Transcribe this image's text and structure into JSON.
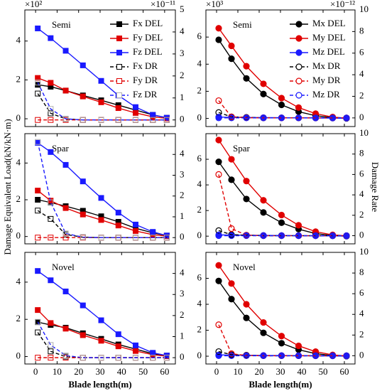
{
  "ylabel": "Damage Equivalent Load(kN/kN·m)",
  "y2label": "Damage Rate",
  "chart_data": [
    {
      "type": "line",
      "title": "Semi",
      "marker": "square",
      "legend": "upper right",
      "y_multiplier": "×10²",
      "y2_multiplier": "×10⁻¹¹",
      "x": [
        1,
        7,
        14,
        22,
        30.5,
        38.5,
        46.5,
        54.5,
        61
      ],
      "xlim": [
        -5,
        65
      ],
      "xticks": [
        0,
        10,
        20,
        30,
        40,
        50,
        60
      ],
      "ylim": [
        -0.4,
        5.6
      ],
      "yticks": [
        0,
        2,
        4
      ],
      "y2lim": [
        -0.3,
        5
      ],
      "y2ticks": [
        0,
        1,
        2,
        3,
        4,
        5
      ],
      "series": [
        {
          "name": "Fx DEL",
          "color": "#000000",
          "values": [
            1.75,
            1.65,
            1.45,
            1.2,
            0.95,
            0.7,
            0.45,
            0.2,
            0.05
          ]
        },
        {
          "name": "Fy DEL",
          "color": "#e00000",
          "values": [
            2.1,
            1.85,
            1.45,
            1.15,
            0.85,
            0.55,
            0.3,
            0.1,
            0.02
          ]
        },
        {
          "name": "Fz DEL",
          "color": "#1a1aff",
          "values": [
            4.65,
            4.15,
            3.5,
            2.75,
            1.95,
            1.2,
            0.6,
            0.2,
            0.05
          ]
        },
        {
          "name": "Fx DR",
          "color": "#000000",
          "axis": "y2",
          "dashed": true,
          "values": [
            1.2,
            0.3,
            0.05,
            0,
            0,
            0,
            0,
            0,
            0
          ]
        },
        {
          "name": "Fy DR",
          "color": "#e00000",
          "axis": "y2",
          "dashed": true,
          "values": [
            0,
            0,
            0,
            0,
            0,
            0,
            0,
            0,
            0
          ]
        },
        {
          "name": "Fz DR",
          "color": "#1a1aff",
          "marker_color": "#b0b0b0",
          "axis": "y2",
          "dashed": true,
          "values": [
            1.7,
            0.5,
            0.05,
            0,
            0,
            0,
            0,
            0,
            0
          ]
        }
      ]
    },
    {
      "type": "line",
      "title": "Semi",
      "marker": "circle",
      "legend": "upper right",
      "y_multiplier": "×10³",
      "y2_multiplier": "×10⁻¹²",
      "x": [
        1,
        7,
        14,
        22,
        30.5,
        38.5,
        46.5,
        54.5,
        61
      ],
      "xlim": [
        -5,
        65
      ],
      "xticks": [
        0,
        10,
        20,
        30,
        40,
        50,
        60
      ],
      "ylim": [
        -0.6,
        8
      ],
      "yticks": [
        0,
        2,
        4,
        6
      ],
      "y2lim": [
        -0.8,
        10
      ],
      "y2ticks": [
        0,
        2,
        4,
        6,
        8,
        10
      ],
      "series": [
        {
          "name": "Mx DEL",
          "color": "#000000",
          "values": [
            5.8,
            4.4,
            2.95,
            1.8,
            1.0,
            0.5,
            0.2,
            0.05,
            0
          ]
        },
        {
          "name": "My DEL",
          "color": "#e00000",
          "values": [
            6.65,
            5.35,
            3.85,
            2.55,
            1.5,
            0.8,
            0.35,
            0.1,
            0.02
          ]
        },
        {
          "name": "Mz DEL",
          "color": "#1a1aff",
          "values": [
            0.1,
            0.08,
            0.07,
            0.06,
            0.05,
            0.04,
            0.03,
            0.02,
            0.01
          ]
        },
        {
          "name": "Mx DR",
          "color": "#000000",
          "axis": "y2",
          "dashed": true,
          "values": [
            0.5,
            0.1,
            0.05,
            0,
            0,
            0,
            0,
            0,
            0
          ]
        },
        {
          "name": "My DR",
          "color": "#e00000",
          "axis": "y2",
          "dashed": true,
          "values": [
            1.6,
            0.1,
            0.02,
            0,
            0,
            0,
            0,
            0,
            0
          ]
        },
        {
          "name": "Mz DR",
          "color": "#1a1aff",
          "axis": "y2",
          "dashed": true,
          "values": [
            0,
            0,
            0,
            0,
            0,
            0,
            0,
            0,
            0
          ]
        }
      ]
    },
    {
      "type": "line",
      "title": "Spar",
      "marker": "square",
      "x": [
        1,
        7,
        14,
        22,
        30.5,
        38.5,
        46.5,
        54.5,
        61
      ],
      "xlim": [
        -5,
        65
      ],
      "xticks": [
        0,
        10,
        20,
        30,
        40,
        50,
        60
      ],
      "ylim": [
        -0.4,
        5.6
      ],
      "yticks": [
        0,
        2,
        4
      ],
      "y2lim": [
        -0.3,
        5
      ],
      "y2ticks": [
        0,
        1,
        2,
        3,
        4
      ],
      "series": [
        {
          "color": "#000000",
          "values": [
            2.0,
            1.85,
            1.65,
            1.4,
            1.1,
            0.8,
            0.45,
            0.2,
            0.05
          ]
        },
        {
          "color": "#e00000",
          "values": [
            2.5,
            1.95,
            1.55,
            1.2,
            0.9,
            0.6,
            0.3,
            0.1,
            0.02
          ]
        },
        {
          "color": "#1a1aff",
          "values": [
            5.1,
            4.6,
            3.9,
            3.0,
            2.1,
            1.3,
            0.65,
            0.25,
            0.05
          ]
        },
        {
          "color": "#000000",
          "axis": "y2",
          "dashed": true,
          "values": [
            1.3,
            0.9,
            0.15,
            0.02,
            0,
            0,
            0,
            0,
            0
          ]
        },
        {
          "color": "#e00000",
          "axis": "y2",
          "dashed": true,
          "values": [
            0,
            0,
            0,
            0,
            0,
            0,
            0,
            0,
            0
          ]
        },
        {
          "color": "#1a1aff",
          "marker_color": "#b0b0b0",
          "axis": "y2",
          "dashed": true,
          "values": [
            4.6,
            1.7,
            0.2,
            0.02,
            0,
            0,
            0,
            0,
            0
          ]
        }
      ]
    },
    {
      "type": "line",
      "title": "Spar",
      "marker": "circle",
      "x": [
        1,
        7,
        14,
        22,
        30.5,
        38.5,
        46.5,
        54.5,
        61
      ],
      "xlim": [
        -5,
        65
      ],
      "xticks": [
        0,
        10,
        20,
        30,
        40,
        50,
        60
      ],
      "ylim": [
        -0.6,
        8
      ],
      "yticks": [
        0,
        2,
        4,
        6
      ],
      "y2lim": [
        -0.8,
        10
      ],
      "y2ticks": [
        0,
        2,
        4,
        6,
        8,
        10
      ],
      "series": [
        {
          "color": "#000000",
          "values": [
            5.8,
            4.4,
            2.9,
            1.85,
            1.05,
            0.55,
            0.2,
            0.05,
            0
          ]
        },
        {
          "color": "#e00000",
          "values": [
            7.5,
            6.0,
            4.3,
            2.8,
            1.65,
            0.85,
            0.35,
            0.1,
            0.02
          ]
        },
        {
          "color": "#1a1aff",
          "values": [
            0.1,
            0.08,
            0.07,
            0.06,
            0.05,
            0.04,
            0.03,
            0.02,
            0.01
          ]
        },
        {
          "color": "#000000",
          "axis": "y2",
          "dashed": true,
          "values": [
            0.5,
            0.1,
            0.05,
            0,
            0,
            0,
            0,
            0,
            0
          ]
        },
        {
          "color": "#e00000",
          "axis": "y2",
          "dashed": true,
          "values": [
            6.0,
            0.7,
            0.05,
            0,
            0,
            0,
            0,
            0,
            0
          ]
        },
        {
          "color": "#1a1aff",
          "axis": "y2",
          "dashed": true,
          "values": [
            0,
            0,
            0,
            0,
            0,
            0,
            0,
            0,
            0
          ]
        }
      ]
    },
    {
      "type": "line",
      "title": "Novel",
      "marker": "square",
      "xlabel": "Blade length(m)",
      "x": [
        1,
        7,
        14,
        22,
        30.5,
        38.5,
        46.5,
        54.5,
        61
      ],
      "xlim": [
        -5,
        65
      ],
      "xticks": [
        0,
        10,
        20,
        30,
        40,
        50,
        60
      ],
      "ylim": [
        -0.4,
        5.6
      ],
      "yticks": [
        0,
        2,
        4
      ],
      "y2lim": [
        -0.3,
        5
      ],
      "y2ticks": [
        0,
        1,
        2,
        3,
        4
      ],
      "series": [
        {
          "color": "#000000",
          "values": [
            1.85,
            1.7,
            1.55,
            1.25,
            0.95,
            0.65,
            0.4,
            0.15,
            0.05
          ]
        },
        {
          "color": "#e00000",
          "values": [
            2.5,
            1.8,
            1.5,
            1.15,
            0.85,
            0.55,
            0.3,
            0.1,
            0.02
          ]
        },
        {
          "color": "#1a1aff",
          "values": [
            4.6,
            4.1,
            3.5,
            2.75,
            1.95,
            1.2,
            0.6,
            0.2,
            0.05
          ]
        },
        {
          "color": "#000000",
          "axis": "y2",
          "dashed": true,
          "values": [
            1.2,
            0.3,
            0.05,
            0,
            0,
            0,
            0,
            0,
            0
          ]
        },
        {
          "color": "#e00000",
          "axis": "y2",
          "dashed": true,
          "values": [
            0,
            0,
            0,
            0,
            0,
            0,
            0,
            0,
            0
          ]
        },
        {
          "color": "#1a1aff",
          "marker_color": "#b0b0b0",
          "axis": "y2",
          "dashed": true,
          "values": [
            1.7,
            0.6,
            0.1,
            0,
            0,
            0,
            0,
            0,
            0
          ]
        }
      ]
    },
    {
      "type": "line",
      "title": "Novel",
      "marker": "circle",
      "xlabel": "Blade length(m)",
      "x": [
        1,
        7,
        14,
        22,
        30.5,
        38.5,
        46.5,
        54.5,
        61
      ],
      "xlim": [
        -5,
        65
      ],
      "xticks": [
        0,
        10,
        20,
        30,
        40,
        50,
        60
      ],
      "ylim": [
        -0.6,
        8
      ],
      "yticks": [
        0,
        2,
        4,
        6
      ],
      "y2lim": [
        -0.8,
        10
      ],
      "y2ticks": [
        0,
        2,
        4,
        6,
        8,
        10
      ],
      "series": [
        {
          "color": "#000000",
          "values": [
            5.8,
            4.4,
            2.95,
            1.8,
            1.0,
            0.5,
            0.2,
            0.05,
            0
          ]
        },
        {
          "color": "#e00000",
          "values": [
            7.0,
            5.6,
            4.0,
            2.6,
            1.55,
            0.8,
            0.35,
            0.1,
            0.02
          ]
        },
        {
          "color": "#1a1aff",
          "values": [
            0.1,
            0.08,
            0.07,
            0.06,
            0.05,
            0.04,
            0.03,
            0.02,
            0.01
          ]
        },
        {
          "color": "#000000",
          "axis": "y2",
          "dashed": true,
          "values": [
            0.4,
            0.1,
            0.05,
            0,
            0,
            0,
            0,
            0,
            0
          ]
        },
        {
          "color": "#e00000",
          "axis": "y2",
          "dashed": true,
          "values": [
            3.0,
            0.2,
            0.02,
            0,
            0,
            0,
            0,
            0,
            0
          ]
        },
        {
          "color": "#1a1aff",
          "axis": "y2",
          "dashed": true,
          "values": [
            0,
            0,
            0,
            0,
            0,
            0,
            0,
            0,
            0
          ]
        }
      ]
    }
  ]
}
